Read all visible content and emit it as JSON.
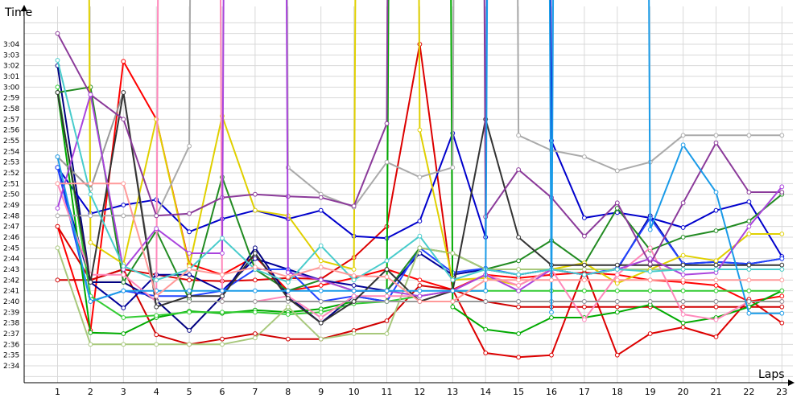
{
  "chart_data": {
    "type": "line",
    "xlabel": "Laps",
    "ylabel": "Time",
    "grid": true,
    "legend": "none",
    "x": [
      1,
      2,
      3,
      4,
      5,
      6,
      7,
      8,
      9,
      10,
      11,
      12,
      13,
      14,
      15,
      16,
      17,
      18,
      19,
      20,
      21,
      22,
      23
    ],
    "ylim_seconds": [
      9264,
      9846
    ],
    "y_ticks": [
      "2:34",
      "2:35",
      "2:36",
      "2:37",
      "2:38",
      "2:39",
      "2:40",
      "2:41",
      "2:42",
      "2:43",
      "2:44",
      "2:45",
      "2:46",
      "2:47",
      "2:48",
      "2:49",
      "2:50",
      "2:51",
      "2:52",
      "2:53",
      "2:54",
      "2:55",
      "2:56",
      "2:57",
      "2:58",
      "2:59",
      "3:00",
      "3:01",
      "3:02",
      "3:03",
      "3:04"
    ],
    "y_tick_seconds": [
      9274,
      9275,
      9276,
      9277,
      9278,
      9279,
      9280,
      9281,
      9282,
      9283,
      9284,
      9285,
      9286,
      9287,
      9288,
      9289,
      9290,
      9291,
      9292,
      9293,
      9294,
      9295,
      9296,
      9297,
      9298,
      9299,
      9300,
      9301,
      9302,
      9303,
      9304
    ],
    "series": [
      {
        "color": "#ff0000",
        "y": [
          9287.0,
          9277.3,
          9302.4,
          9297.0,
          9283.5,
          9282.5,
          9284.2,
          9281.0,
          9281.5,
          9282.2,
          9283.0,
          9282.0,
          9281.1,
          9282.5,
          9282.2,
          9282.5,
          9282.7,
          9282.5,
          9282.0,
          9281.8,
          9281.5,
          9280.0,
          9280.5
        ]
      },
      {
        "color": "#dd0000",
        "y": [
          9287.0,
          9282.0,
          9283.0,
          9282.5,
          9282.0,
          9281.9,
          9282.0,
          9282.2,
          9282.1,
          9284.1,
          9287.0,
          9304.0,
          9281.1,
          9275.2,
          9274.8,
          9275.0,
          9283.0,
          9275.0,
          9277.0,
          9277.6,
          9276.7,
          9280.2,
          9278.0
        ]
      },
      {
        "color": "#d00000",
        "y": [
          9282.0,
          9282.0,
          9283.0,
          9276.9,
          9276.0,
          9276.5,
          9277.0,
          9276.5,
          9276.5,
          9277.3,
          9278.2,
          9281.5,
          9281.1,
          9280.0,
          9279.5,
          9279.5,
          9279.5,
          9279.5,
          9279.5,
          9279.5,
          9279.5,
          9279.5,
          9279.5
        ]
      },
      {
        "color": "#000080",
        "y": [
          9302.0,
          9281.8,
          9281.8,
          9280.1,
          9277.3,
          9280.5,
          9285.0,
          9280.5,
          9278.0,
          9280.5,
          9280.0,
          9280.0,
          9280.0,
          9280.0,
          9280.0,
          9280.0,
          9280.0,
          9280.0,
          9280.0,
          9280.0,
          9280.0,
          9280.0,
          9280.0
        ]
      },
      {
        "color": "#0000cc",
        "y": [
          9292.5,
          9288.2,
          9289.0,
          9289.5,
          9286.5,
          9287.7,
          9288.5,
          9287.7,
          9288.5,
          9286.1,
          9285.9,
          9287.5,
          9295.7,
          9286.0,
          9860.0,
          9295.0,
          9287.8,
          9288.3,
          9287.8,
          9286.9,
          9288.5,
          9289.3,
          9284.2
        ]
      },
      {
        "color": "#000099",
        "y": [
          9292.5,
          9281.8,
          9279.4,
          9282.5,
          9282.5,
          9281.0,
          9284.0,
          9283.0,
          9282.0,
          9281.5,
          9281.0,
          9284.5,
          9282.5,
          9283.0,
          9282.5,
          9283.0,
          9282.5,
          9283.0,
          9288.0,
          9283.5,
          9283.7,
          9283.5,
          9284.0
        ]
      },
      {
        "color": "#2244ff",
        "y": [
          9292.5,
          9280.0,
          9281.0,
          9280.5,
          9280.5,
          9281.0,
          9283.0,
          9283.0,
          9280.0,
          9280.5,
          9280.0,
          9285.0,
          9282.7,
          9283.1,
          9282.5,
          9283.0,
          9282.5,
          9283.1,
          9287.8,
          9283.5,
          9283.7,
          9283.5,
          9284.0
        ]
      },
      {
        "color": "#00aa00",
        "y": [
          9299.5,
          9277.1,
          9277.0,
          9278.5,
          9279.1,
          9278.9,
          9279.2,
          9279.0,
          9279.3,
          9280.0,
          9280.0,
          9846.0,
          9279.5,
          9277.4,
          9277.0,
          9278.5,
          9278.5,
          9279.0,
          9279.7,
          9278.0,
          9278.5,
          9279.5,
          9281.0
        ]
      },
      {
        "color": "#33cc33",
        "y": [
          9300.0,
          9280.5,
          9278.5,
          9278.7,
          9279.0,
          9279.0,
          9279.0,
          9278.8,
          9279.0,
          9279.8,
          9280.0,
          9280.5,
          9281.0,
          9281.0,
          9281.0,
          9281.0,
          9281.0,
          9281.0,
          9281.0,
          9281.0,
          9281.0,
          9281.0,
          9281.0
        ]
      },
      {
        "color": "#228b22",
        "y": [
          9299.5,
          9300.0,
          9281.8,
          9286.6,
          9280.2,
          9291.6,
          9283.0,
          9281.0,
          9282.0,
          9281.0,
          9281.0,
          9285.0,
          9284.5,
          9283.0,
          9283.8,
          9285.7,
          9283.5,
          9288.7,
          9284.8,
          9286.0,
          9286.6,
          9287.5,
          9290.0
        ]
      },
      {
        "color": "#a8c87c",
        "y": [
          9285.0,
          9276.0,
          9276.0,
          9276.0,
          9276.0,
          9276.0,
          9276.6,
          9279.5,
          9276.5,
          9277.0,
          9277.0,
          9285.0,
          9284.5,
          9283.0,
          9283.0,
          9283.0,
          9283.0,
          9283.0,
          9283.0,
          9283.0,
          9283.0,
          9283.0,
          9283.0
        ]
      },
      {
        "color": "#e0d000",
        "y": [
          9860.0,
          9285.5,
          9283.5,
          9297.0,
          9283.3,
          9297.3,
          9288.5,
          9288.0,
          9283.8,
          9283.0,
          9860.0,
          9296.0,
          9282.0,
          9282.2,
          9281.5,
          9283.0,
          9283.6,
          9281.7,
          9283.0,
          9284.3,
          9283.8,
          9286.3,
          9286.3
        ]
      },
      {
        "color": "#ff88bb",
        "y": [
          9291.0,
          9282.5,
          9282.5,
          9280.0,
          9860.0,
          9280.0,
          9280.0,
          9280.5,
          9278.5,
          9280.5,
          9280.5,
          9280.5,
          9281.0,
          9282.5,
          9281.5,
          9283.0,
          9278.3,
          9282.5,
          9285.0,
          9278.8,
          9278.3,
          9280.0,
          9280.0
        ]
      },
      {
        "color": "#999999",
        "y": [
          9293.5,
          9290.5,
          9299.5,
          9280.0,
          9280.0,
          9280.0,
          9280.0,
          9280.0,
          9280.0,
          9280.0,
          9280.0,
          9280.0,
          9280.0,
          9280.0,
          9280.0,
          9280.0,
          9280.0,
          9280.0,
          9280.0,
          9280.0,
          9280.0,
          9280.0,
          9280.0
        ]
      },
      {
        "color": "#aaaaaa",
        "y": [
          9288.0,
          9288.0,
          9288.0,
          9288.0,
          9294.5,
          9860.0,
          9860.0,
          9292.5,
          9290.0,
          9288.8,
          9293.0,
          9291.6,
          9292.5,
          9860.0,
          9295.5,
          9294.1,
          9293.5,
          9292.2,
          9293.0,
          9295.5,
          9295.5,
          9295.5,
          9295.5
        ]
      },
      {
        "color": "#333333",
        "y": [
          9299.5,
          9281.8,
          9299.5,
          9279.5,
          9280.5,
          9280.5,
          9284.5,
          9280.3,
          9278.0,
          9280.0,
          9283.0,
          9280.0,
          9281.0,
          9297.0,
          9286.0,
          9283.4,
          9283.4,
          9283.4,
          9283.4,
          9283.4,
          9283.4,
          9283.4,
          9283.4
        ]
      },
      {
        "color": "#8b3a9a",
        "y": [
          9305.0,
          9299.3,
          9297.0,
          9288.0,
          9288.2,
          9289.7,
          9290.0,
          9289.8,
          9289.7,
          9288.9,
          9296.6,
          9860.0,
          9860.0,
          9287.9,
          9292.3,
          9289.7,
          9286.1,
          9289.2,
          9283.5,
          9289.2,
          9294.8,
          9290.2,
          9290.2
        ]
      },
      {
        "color": "#aa44dd",
        "y": [
          9288.7,
          9299.3,
          9283.0,
          9286.8,
          9284.5,
          9284.5,
          9860.0,
          9282.7,
          9282.0,
          9281.0,
          9281.0,
          9280.5,
          9281.0,
          9282.5,
          9281.0,
          9283.0,
          9282.5,
          9283.0,
          9284.0,
          9282.5,
          9282.7,
          9287.0,
          9290.7
        ]
      },
      {
        "color": "#48cccc",
        "y": [
          9302.5,
          9290.0,
          9283.3,
          9282.0,
          9283.0,
          9285.9,
          9283.0,
          9281.8,
          9285.2,
          9282.0,
          9283.8,
          9286.1,
          9282.0,
          9283.0,
          9282.5,
          9283.0,
          9282.5,
          9283.0,
          9282.8,
          9283.0,
          9283.0,
          9283.0,
          9283.0
        ]
      },
      {
        "color": "#1a9be8",
        "y": [
          9293.5,
          9280.0,
          9281.0,
          9281.0,
          9281.0,
          9281.0,
          9281.0,
          9281.0,
          9281.0,
          9281.0,
          9281.0,
          9281.0,
          9281.0,
          9281.0,
          9860.0,
          9279.0,
          9860.0,
          9860.0,
          9286.7,
          9294.6,
          9290.2,
          9278.9,
          9278.9
        ]
      },
      {
        "color": "#ff9999",
        "y": [
          9291.0,
          9291.0,
          9291.0,
          9280.5,
          9283.0,
          9282.5,
          9283.2,
          9282.3,
          9283.2,
          9282.4,
          9282.3,
          9280.0,
          9280.0,
          9282.0,
          9282.0,
          9282.0,
          9282.0,
          9282.0,
          9282.0,
          9282.0,
          9282.0,
          9282.0,
          9282.0
        ]
      }
    ]
  },
  "labels": {
    "y_title": "Time",
    "x_title": "Laps"
  }
}
